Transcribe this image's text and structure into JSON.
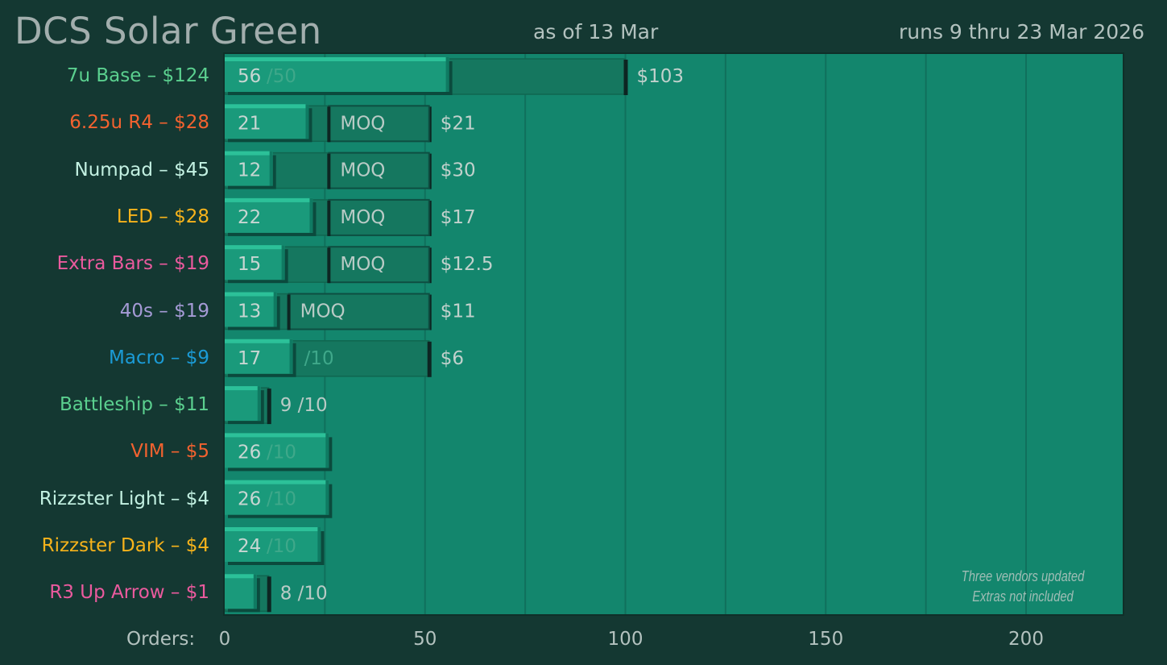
{
  "header": {
    "title": "DCS Solar Green",
    "as_of": "as of 13 Mar",
    "runs": "runs 9 thru 23 Mar 2026"
  },
  "axis": {
    "label": "Orders:"
  },
  "notes": {
    "line1": "Three vendors updated",
    "line2": "Extras not included"
  },
  "colors": {
    "plot_bg": "#13866d",
    "bar": "#1a9a7b",
    "bar_top": "#2cc199",
    "target_box": "#15775f",
    "grid": "#10705c"
  },
  "chart_data": {
    "type": "bar",
    "orientation": "horizontal",
    "xlim": [
      0,
      225
    ],
    "xticks": [
      0,
      50,
      100,
      150,
      200
    ],
    "grid": true,
    "rows": [
      {
        "label": "7u Base – $124",
        "color": "#5bd08f",
        "value": 56,
        "value_text": "56",
        "target": 100,
        "target_text": "/50",
        "target_pos": "inside",
        "moq_from": null,
        "moq_text": "",
        "price": "$103"
      },
      {
        "label": "6.25u R4 – $28",
        "color": "#f2622f",
        "value": 21,
        "value_text": "21",
        "target": 51,
        "target_text": "",
        "target_pos": "inside",
        "moq_from": 26,
        "moq_text": "MOQ",
        "price": "$21"
      },
      {
        "label": "Numpad – $45",
        "color": "#c3f1e2",
        "value": 12,
        "value_text": "12",
        "target": 51,
        "target_text": "",
        "target_pos": "inside",
        "moq_from": 26,
        "moq_text": "MOQ",
        "price": "$30"
      },
      {
        "label": "LED – $28",
        "color": "#f7b31b",
        "value": 22,
        "value_text": "22",
        "target": 51,
        "target_text": "",
        "target_pos": "inside",
        "moq_from": 26,
        "moq_text": "MOQ",
        "price": "$17"
      },
      {
        "label": "Extra Bars – $19",
        "color": "#eb5a9e",
        "value": 15,
        "value_text": "15",
        "target": 51,
        "target_text": "",
        "target_pos": "inside",
        "moq_from": 26,
        "moq_text": "MOQ",
        "price": "$12.5"
      },
      {
        "label": "40s – $19",
        "color": "#a59bd6",
        "value": 13,
        "value_text": "13",
        "target": 51,
        "target_text": "",
        "target_pos": "inside",
        "moq_from": 16,
        "moq_text": "MOQ",
        "price": "$11"
      },
      {
        "label": "Macro – $9",
        "color": "#1b9bd6",
        "value": 17,
        "value_text": "17",
        "target": 51,
        "target_text": "/10",
        "target_pos": "inside",
        "moq_from": null,
        "moq_text": "",
        "price": "$6"
      },
      {
        "label": "Battleship – $11",
        "color": "#5bd08f",
        "value": 9,
        "value_text": "",
        "target": 11,
        "target_text": "9 /10",
        "target_pos": "outside",
        "moq_from": null,
        "moq_text": "",
        "price": ""
      },
      {
        "label": "VIM – $5",
        "color": "#f2622f",
        "value": 26,
        "value_text": "26",
        "target": null,
        "target_text": "/10",
        "target_pos": "inside",
        "moq_from": null,
        "moq_text": "",
        "price": ""
      },
      {
        "label": "Rizzster Light – $4",
        "color": "#c3f1e2",
        "value": 26,
        "value_text": "26",
        "target": null,
        "target_text": "/10",
        "target_pos": "inside",
        "moq_from": null,
        "moq_text": "",
        "price": ""
      },
      {
        "label": "Rizzster Dark – $4",
        "color": "#f7b31b",
        "value": 24,
        "value_text": "24",
        "target": null,
        "target_text": "/10",
        "target_pos": "inside",
        "moq_from": null,
        "moq_text": "",
        "price": ""
      },
      {
        "label": "R3 Up Arrow – $1",
        "color": "#eb5a9e",
        "value": 8,
        "value_text": "",
        "target": 11,
        "target_text": "8 /10",
        "target_pos": "outside",
        "moq_from": null,
        "moq_text": "",
        "price": ""
      }
    ]
  }
}
